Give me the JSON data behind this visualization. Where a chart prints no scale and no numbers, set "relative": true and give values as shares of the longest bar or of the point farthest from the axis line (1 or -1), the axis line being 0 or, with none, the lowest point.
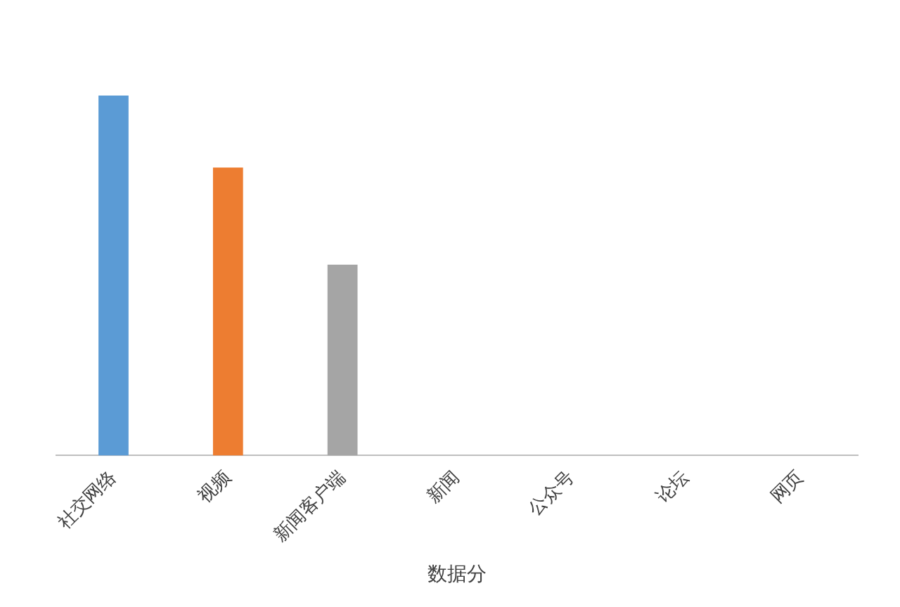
{
  "chart_data": {
    "type": "bar",
    "relative": true,
    "xlabel": "数据分",
    "categories": [
      "社交网络",
      "视频",
      "新闻客户端",
      "新闻",
      "公众号",
      "论坛",
      "网页"
    ],
    "values": [
      1,
      0.8,
      0.53,
      0,
      0,
      0,
      0
    ],
    "colors": [
      "#5b9bd5",
      "#ed7d31",
      "#a5a5a5",
      "#ffc000",
      "#4472c4",
      "#70ad47",
      "#255e91"
    ],
    "grid": false,
    "legend": false
  }
}
